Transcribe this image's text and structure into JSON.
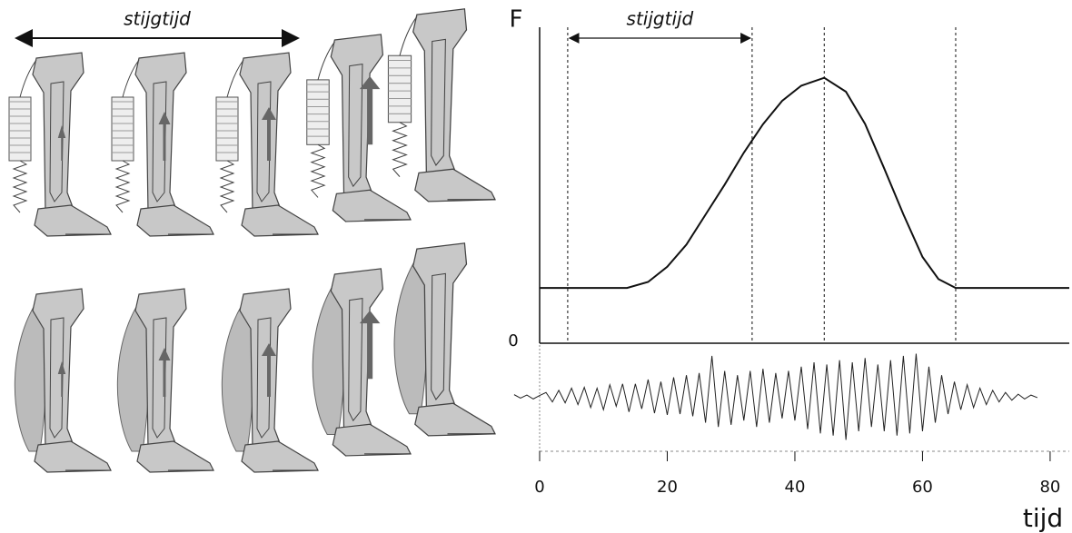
{
  "illustration": {
    "annotation": "stijgtijd"
  },
  "chart_data": [
    {
      "type": "line",
      "ylabel": "F",
      "xlabel": "tijd",
      "annotation": "stijgtijd",
      "annotation_span": [
        4.4,
        33.3
      ],
      "vlines": [
        4.4,
        33.3,
        44.6,
        65.2
      ],
      "x": [
        0,
        13.7,
        17,
        20,
        23,
        26,
        29,
        32,
        35,
        38,
        41,
        44.6,
        48,
        51,
        54,
        57,
        60,
        62.5,
        65.2,
        83
      ],
      "series": [
        {
          "color": "#111111",
          "values": [
            17.5,
            17.5,
            19.4,
            24.2,
            31.2,
            40.7,
            50.2,
            60.3,
            69.3,
            76.7,
            81.5,
            84,
            79.6,
            69.4,
            55.3,
            40.8,
            27.3,
            20.3,
            17.5,
            17.5
          ]
        }
      ],
      "xlim": [
        0,
        83
      ],
      "ylim": [
        0,
        100
      ],
      "yticks": [
        0
      ],
      "xticks": [
        0,
        20,
        40,
        60,
        80
      ]
    },
    {
      "type": "line",
      "x": [
        -4,
        -3,
        -2,
        -1,
        0,
        1,
        2,
        3,
        4,
        5,
        6,
        7,
        8,
        9,
        10,
        11,
        12,
        13,
        14,
        15,
        16,
        17,
        18,
        19,
        20,
        21,
        22,
        23,
        24,
        25,
        26,
        27,
        28,
        29,
        30,
        31,
        32,
        33,
        34,
        35,
        36,
        37,
        38,
        39,
        40,
        41,
        42,
        43,
        44,
        45,
        46,
        47,
        48,
        49,
        50,
        51,
        52,
        53,
        54,
        55,
        56,
        57,
        58,
        59,
        60,
        61,
        62,
        63,
        64,
        65,
        66,
        67,
        68,
        69,
        70,
        71,
        72,
        73,
        74,
        75,
        76,
        77,
        78
      ],
      "series": [
        {
          "color": "#222222",
          "values": [
            0.05,
            -0.03,
            0.04,
            -0.05,
            0.03,
            0.1,
            -0.12,
            0.15,
            -0.14,
            0.2,
            -0.18,
            0.22,
            -0.25,
            0.2,
            -0.3,
            0.28,
            -0.22,
            0.3,
            -0.35,
            0.3,
            -0.28,
            0.4,
            -0.38,
            0.35,
            -0.42,
            0.45,
            -0.4,
            0.5,
            -0.45,
            0.55,
            -0.6,
            0.95,
            -0.7,
            0.6,
            -0.65,
            0.5,
            -0.55,
            0.6,
            -0.7,
            0.65,
            -0.6,
            0.55,
            -0.5,
            0.6,
            -0.55,
            0.7,
            -0.75,
            0.8,
            -0.85,
            0.75,
            -0.9,
            0.85,
            -1.0,
            0.8,
            -0.8,
            0.9,
            -0.7,
            0.75,
            -0.8,
            0.85,
            -0.9,
            0.95,
            -0.85,
            1.0,
            -0.8,
            0.7,
            -0.6,
            0.5,
            -0.4,
            0.35,
            -0.3,
            0.28,
            -0.25,
            0.2,
            -0.18,
            0.15,
            -0.12,
            0.1,
            -0.08,
            0.06,
            -0.05,
            0.04,
            -0.02
          ]
        }
      ],
      "xlim": [
        0,
        83
      ],
      "ylim": [
        -1.2,
        1.2
      ]
    }
  ]
}
